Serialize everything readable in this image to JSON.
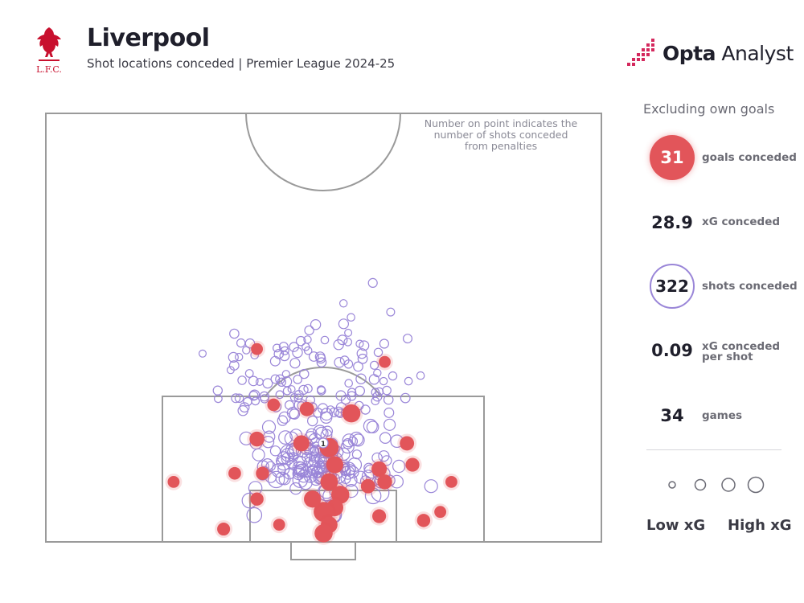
{
  "header": {
    "title": "Liverpool",
    "subtitle": "Shot locations conceded | Premier League 2024-25",
    "crest_text": "L.F.C.",
    "brand_bold": "Opta",
    "brand_light": " Analyst"
  },
  "note": {
    "line1": "Number on point indicates the",
    "line2": "number of shots conceded",
    "line3": "from penalties"
  },
  "stats": {
    "excluding": "Excluding own goals",
    "goals_value": "31",
    "goals_label": "goals conceded",
    "xg_value": "28.9",
    "xg_label": "xG conceded",
    "shots_value": "322",
    "shots_label": "shots conceded",
    "xgps_value": "0.09",
    "xgps_label_1": "xG conceded",
    "xgps_label_2": "per shot",
    "games_value": "34",
    "games_label": "games"
  },
  "legend": {
    "low": "Low xG",
    "high": "High xG"
  },
  "colors": {
    "goal": "#e2555a",
    "shot": "#9a86d8",
    "pitch_line": "#9a9a9a",
    "brand_pink": "#d4285d"
  },
  "chart_data": {
    "type": "scatter",
    "pitch": "half-pitch, attacking upward toward goal at bottom",
    "penalty_label": "1",
    "note": "approximate shot locations read from the image; x = pitch width 0-100, y = distance from goal line 0-100 (half pitch)",
    "goals": [
      {
        "x": 55,
        "y": 30,
        "xg": 0.35
      },
      {
        "x": 46,
        "y": 23,
        "xg": 0.25
      },
      {
        "x": 51,
        "y": 22,
        "xg": 0.4
      },
      {
        "x": 52,
        "y": 18,
        "xg": 0.3
      },
      {
        "x": 51,
        "y": 14,
        "xg": 0.32
      },
      {
        "x": 53,
        "y": 11,
        "xg": 0.35
      },
      {
        "x": 52,
        "y": 8,
        "xg": 0.3
      },
      {
        "x": 50,
        "y": 7,
        "xg": 0.45
      },
      {
        "x": 48,
        "y": 10,
        "xg": 0.3
      },
      {
        "x": 51,
        "y": 4,
        "xg": 0.28
      },
      {
        "x": 60,
        "y": 17,
        "xg": 0.22
      },
      {
        "x": 61,
        "y": 14,
        "xg": 0.2
      },
      {
        "x": 65,
        "y": 23,
        "xg": 0.18
      },
      {
        "x": 66,
        "y": 18,
        "xg": 0.16
      },
      {
        "x": 38,
        "y": 24,
        "xg": 0.2
      },
      {
        "x": 39,
        "y": 16,
        "xg": 0.14
      },
      {
        "x": 34,
        "y": 16,
        "xg": 0.12
      },
      {
        "x": 38,
        "y": 10,
        "xg": 0.14
      },
      {
        "x": 47,
        "y": 31,
        "xg": 0.18
      },
      {
        "x": 41,
        "y": 32,
        "xg": 0.12
      },
      {
        "x": 32,
        "y": 3,
        "xg": 0.13
      },
      {
        "x": 58,
        "y": 13,
        "xg": 0.18
      },
      {
        "x": 50,
        "y": 2,
        "xg": 0.35
      },
      {
        "x": 60,
        "y": 6,
        "xg": 0.16
      },
      {
        "x": 68,
        "y": 5,
        "xg": 0.14
      },
      {
        "x": 71,
        "y": 7,
        "xg": 0.1
      },
      {
        "x": 73,
        "y": 14,
        "xg": 0.1
      },
      {
        "x": 42,
        "y": 4,
        "xg": 0.1
      },
      {
        "x": 23,
        "y": 14,
        "xg": 0.1
      },
      {
        "x": 61,
        "y": 42,
        "xg": 0.1
      },
      {
        "x": 38,
        "y": 45,
        "xg": 0.1
      }
    ],
    "shot_count": 322
  }
}
